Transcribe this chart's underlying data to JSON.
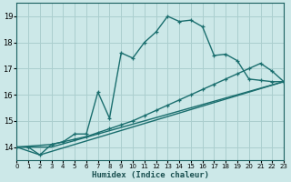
{
  "xlabel": "Humidex (Indice chaleur)",
  "xlim": [
    0,
    23
  ],
  "ylim": [
    13.5,
    19.5
  ],
  "yticks": [
    14,
    15,
    16,
    17,
    18,
    19
  ],
  "xticks": [
    0,
    1,
    2,
    3,
    4,
    5,
    6,
    7,
    8,
    9,
    10,
    11,
    12,
    13,
    14,
    15,
    16,
    17,
    18,
    19,
    20,
    21,
    22,
    23
  ],
  "bg_color": "#cce8e8",
  "grid_color": "#aacece",
  "line_color": "#1a6e6e",
  "curve1_x": [
    0,
    1,
    2,
    3,
    4,
    5,
    6,
    7,
    8,
    9,
    10,
    11,
    12,
    13,
    14,
    15,
    16,
    17,
    18,
    19,
    20,
    21,
    22,
    23
  ],
  "curve1_y": [
    14.0,
    14.0,
    13.7,
    14.1,
    14.2,
    14.5,
    14.5,
    16.1,
    15.1,
    17.6,
    17.4,
    18.0,
    18.4,
    19.0,
    18.8,
    18.85,
    18.6,
    17.5,
    17.55,
    17.3,
    16.6,
    16.55,
    16.5,
    16.5
  ],
  "curve2_x": [
    0,
    3,
    5,
    6,
    7,
    8,
    9,
    10,
    11,
    12,
    13,
    14,
    15,
    16,
    17,
    18,
    19,
    20,
    21,
    22,
    23
  ],
  "curve2_y": [
    14.0,
    14.1,
    14.3,
    14.4,
    14.55,
    14.7,
    14.85,
    15.0,
    15.2,
    15.4,
    15.6,
    15.8,
    16.0,
    16.2,
    16.4,
    16.6,
    16.8,
    17.0,
    17.2,
    16.9,
    16.5
  ],
  "curve3_x": [
    0,
    3,
    23
  ],
  "curve3_y": [
    14.0,
    14.0,
    16.5
  ],
  "curve4_x": [
    0,
    2,
    23
  ],
  "curve4_y": [
    14.0,
    13.7,
    16.5
  ]
}
